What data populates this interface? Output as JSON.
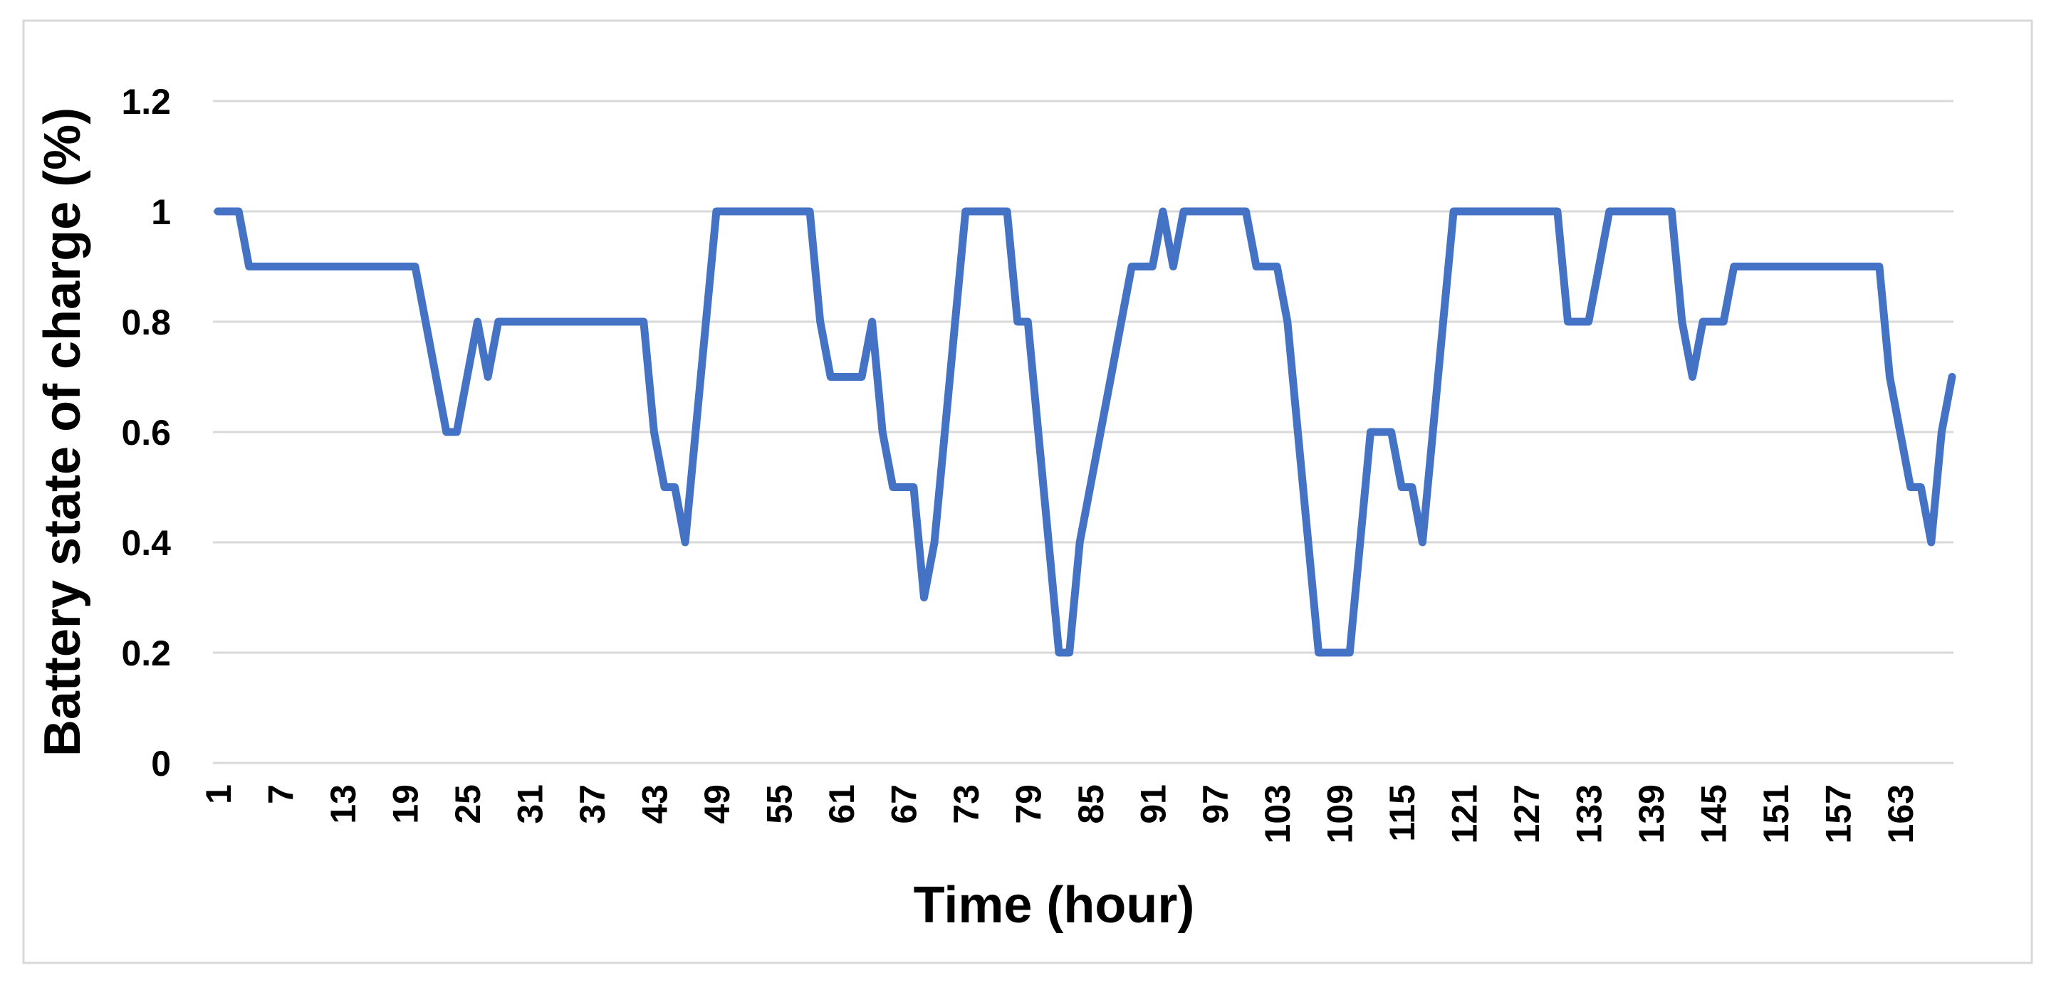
{
  "chart_data": {
    "type": "line",
    "title": "",
    "xlabel": "Time (hour)",
    "ylabel": "Battery state of charge (%)",
    "legend": "none",
    "grid": "horizontal",
    "xlim": [
      1,
      168
    ],
    "ylim": [
      0,
      1.2
    ],
    "xticks": [
      1,
      7,
      13,
      19,
      25,
      31,
      37,
      43,
      49,
      55,
      61,
      67,
      73,
      79,
      85,
      91,
      97,
      103,
      109,
      115,
      121,
      127,
      133,
      139,
      145,
      151,
      157,
      163
    ],
    "yticks": [
      0,
      0.2,
      0.4,
      0.6,
      0.8,
      1,
      1.2
    ],
    "x_hours_start": 1,
    "x_hours_step": 1,
    "series": [
      {
        "name": "Battery state of charge",
        "color": "#4472C4",
        "values": [
          1.0,
          1.0,
          1.0,
          0.9,
          0.9,
          0.9,
          0.9,
          0.9,
          0.9,
          0.9,
          0.9,
          0.9,
          0.9,
          0.9,
          0.9,
          0.9,
          0.9,
          0.9,
          0.9,
          0.9,
          0.8,
          0.7,
          0.6,
          0.6,
          0.7,
          0.8,
          0.7,
          0.8,
          0.8,
          0.8,
          0.8,
          0.8,
          0.8,
          0.8,
          0.8,
          0.8,
          0.8,
          0.8,
          0.8,
          0.8,
          0.8,
          0.8,
          0.6,
          0.5,
          0.5,
          0.4,
          0.6,
          0.8,
          1.0,
          1.0,
          1.0,
          1.0,
          1.0,
          1.0,
          1.0,
          1.0,
          1.0,
          1.0,
          0.8,
          0.7,
          0.7,
          0.7,
          0.7,
          0.8,
          0.6,
          0.5,
          0.5,
          0.5,
          0.3,
          0.4,
          0.6,
          0.8,
          1.0,
          1.0,
          1.0,
          1.0,
          1.0,
          0.8,
          0.8,
          0.6,
          0.4,
          0.2,
          0.2,
          0.4,
          0.5,
          0.6,
          0.7,
          0.8,
          0.9,
          0.9,
          0.9,
          1.0,
          0.9,
          1.0,
          1.0,
          1.0,
          1.0,
          1.0,
          1.0,
          1.0,
          0.9,
          0.9,
          0.9,
          0.8,
          0.6,
          0.4,
          0.2,
          0.2,
          0.2,
          0.2,
          0.4,
          0.6,
          0.6,
          0.6,
          0.5,
          0.5,
          0.4,
          0.6,
          0.8,
          1.0,
          1.0,
          1.0,
          1.0,
          1.0,
          1.0,
          1.0,
          1.0,
          1.0,
          1.0,
          1.0,
          0.8,
          0.8,
          0.8,
          0.9,
          1.0,
          1.0,
          1.0,
          1.0,
          1.0,
          1.0,
          1.0,
          0.8,
          0.7,
          0.8,
          0.8,
          0.8,
          0.9,
          0.9,
          0.9,
          0.9,
          0.9,
          0.9,
          0.9,
          0.9,
          0.9,
          0.9,
          0.9,
          0.9,
          0.9,
          0.9,
          0.9,
          0.7,
          0.6,
          0.5,
          0.5,
          0.4,
          0.6,
          0.7
        ]
      }
    ],
    "colors": {
      "series_line": "#4472C4",
      "gridline": "#D9D9D9",
      "chart_border": "#D9D9D9",
      "text": "#000000",
      "background": "#FFFFFF"
    }
  }
}
